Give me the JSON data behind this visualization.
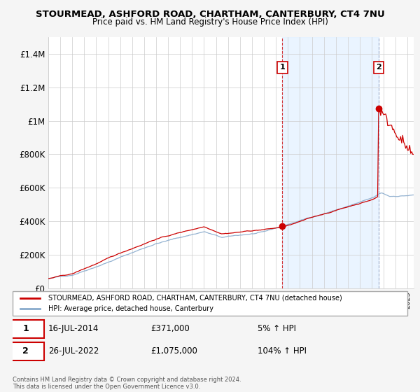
{
  "title": "STOURMEAD, ASHFORD ROAD, CHARTHAM, CANTERBURY, CT4 7NU",
  "subtitle": "Price paid vs. HM Land Registry's House Price Index (HPI)",
  "legend_label_red": "STOURMEAD, ASHFORD ROAD, CHARTHAM, CANTERBURY, CT4 7NU (detached house)",
  "legend_label_blue": "HPI: Average price, detached house, Canterbury",
  "annotation1_label": "1",
  "annotation1_date": "16-JUL-2014",
  "annotation1_price": "£371,000",
  "annotation1_pct": "5% ↑ HPI",
  "annotation2_label": "2",
  "annotation2_date": "26-JUL-2022",
  "annotation2_price": "£1,075,000",
  "annotation2_pct": "104% ↑ HPI",
  "footnote": "Contains HM Land Registry data © Crown copyright and database right 2024.\nThis data is licensed under the Open Government Licence v3.0.",
  "ylim": [
    0,
    1500000
  ],
  "yticks": [
    0,
    200000,
    400000,
    600000,
    800000,
    1000000,
    1200000,
    1400000
  ],
  "ytick_labels": [
    "£0",
    "£200K",
    "£400K",
    "£600K",
    "£800K",
    "£1M",
    "£1.2M",
    "£1.4M"
  ],
  "sale1_year": 2014.54,
  "sale1_price": 371000,
  "sale2_year": 2022.57,
  "sale2_price": 1075000,
  "background_color": "#f5f5f5",
  "plot_background": "#ffffff",
  "shade_color": "#ddeeff",
  "grid_color": "#cccccc",
  "red_color": "#cc0000",
  "blue_color": "#88aacc"
}
